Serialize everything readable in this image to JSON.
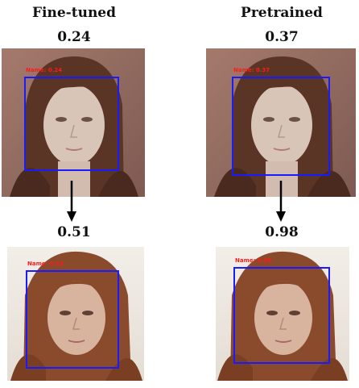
{
  "columns": [
    {
      "title": "Fine-tuned",
      "top_score": "0.24",
      "top_label": "Name: 0.24",
      "bottom_score": "0.51",
      "bottom_label": "Name: 0.51"
    },
    {
      "title": "Pretrained",
      "top_score": "0.37",
      "top_label": "Name: 0.37",
      "bottom_score": "0.98",
      "bottom_label": "Name: 0.98"
    }
  ],
  "colors": {
    "box": "#1a1aff",
    "label": "#ff1a1a"
  }
}
